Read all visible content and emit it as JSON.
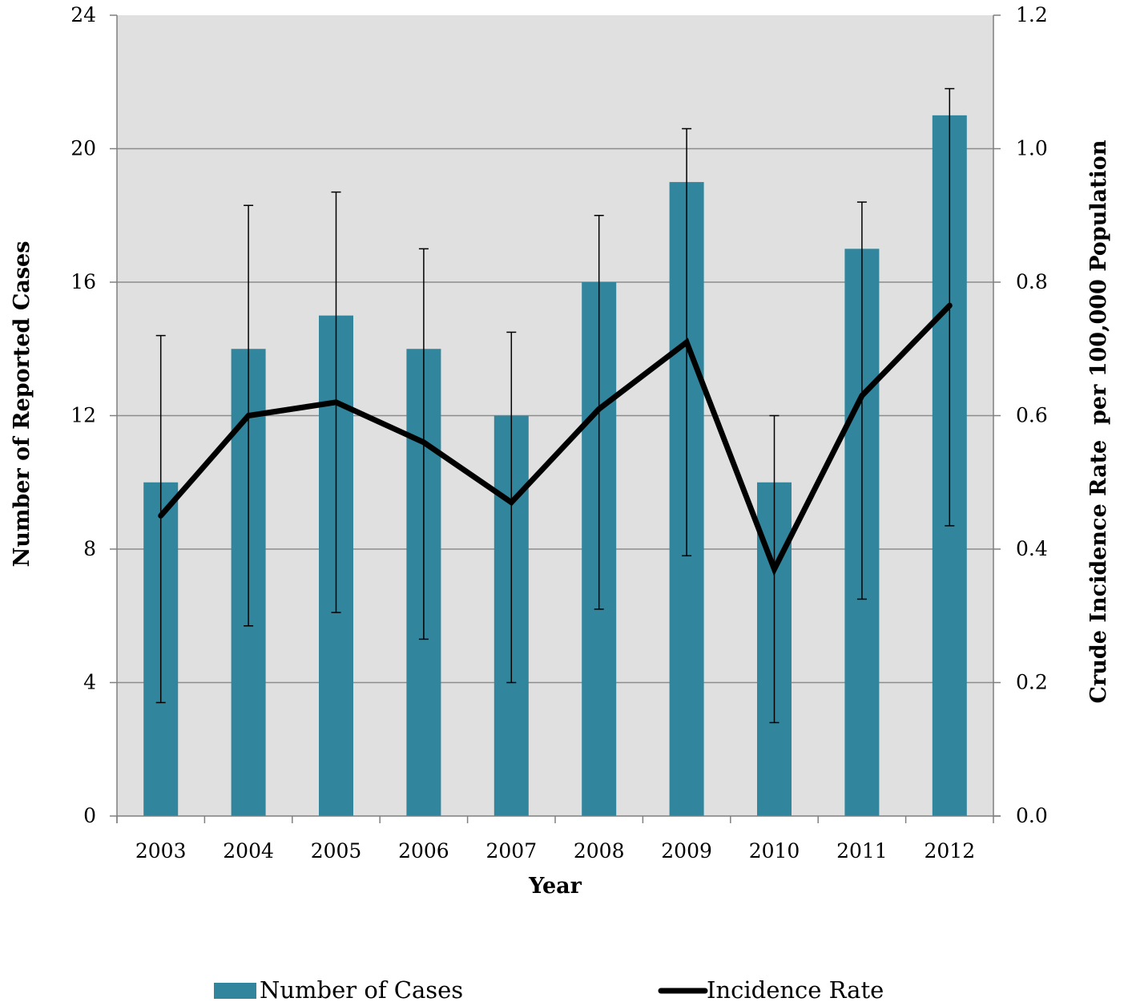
{
  "chart_data": {
    "type": "bar",
    "categories": [
      "2003",
      "2004",
      "2005",
      "2006",
      "2007",
      "2008",
      "2009",
      "2010",
      "2011",
      "2012"
    ],
    "series": [
      {
        "name": "Number of Cases",
        "type": "bar",
        "axis": "left",
        "color": "#31859c",
        "values": [
          10,
          14,
          15,
          14,
          12,
          16,
          19,
          10,
          17,
          21
        ],
        "error_low": [
          3.4,
          5.7,
          6.1,
          5.3,
          4.0,
          6.2,
          7.8,
          2.8,
          6.5,
          8.7
        ],
        "error_high": [
          14.4,
          18.3,
          18.7,
          17.0,
          14.5,
          18.0,
          20.6,
          12.0,
          18.4,
          21.8
        ]
      },
      {
        "name": "Incidence Rate",
        "type": "line",
        "axis": "right",
        "color": "#000000",
        "values": [
          0.45,
          0.6,
          0.62,
          0.56,
          0.47,
          0.61,
          0.71,
          0.37,
          0.63,
          0.765
        ]
      }
    ],
    "xlabel": "Year",
    "ylabel": "Number of Reported Cases",
    "y2label": "Crude Incidence Rate  per 100,000 Population",
    "ylim": [
      0,
      24
    ],
    "y2lim": [
      0,
      1.2
    ],
    "yticks": [
      "0",
      "4",
      "8",
      "12",
      "16",
      "20",
      "24"
    ],
    "y2ticks": [
      "0.0",
      "0.2",
      "0.4",
      "0.6",
      "0.8",
      "1.0",
      "1.2"
    ],
    "grid": true,
    "plot_background": "#e0e0e0",
    "legend_position": "bottom"
  }
}
